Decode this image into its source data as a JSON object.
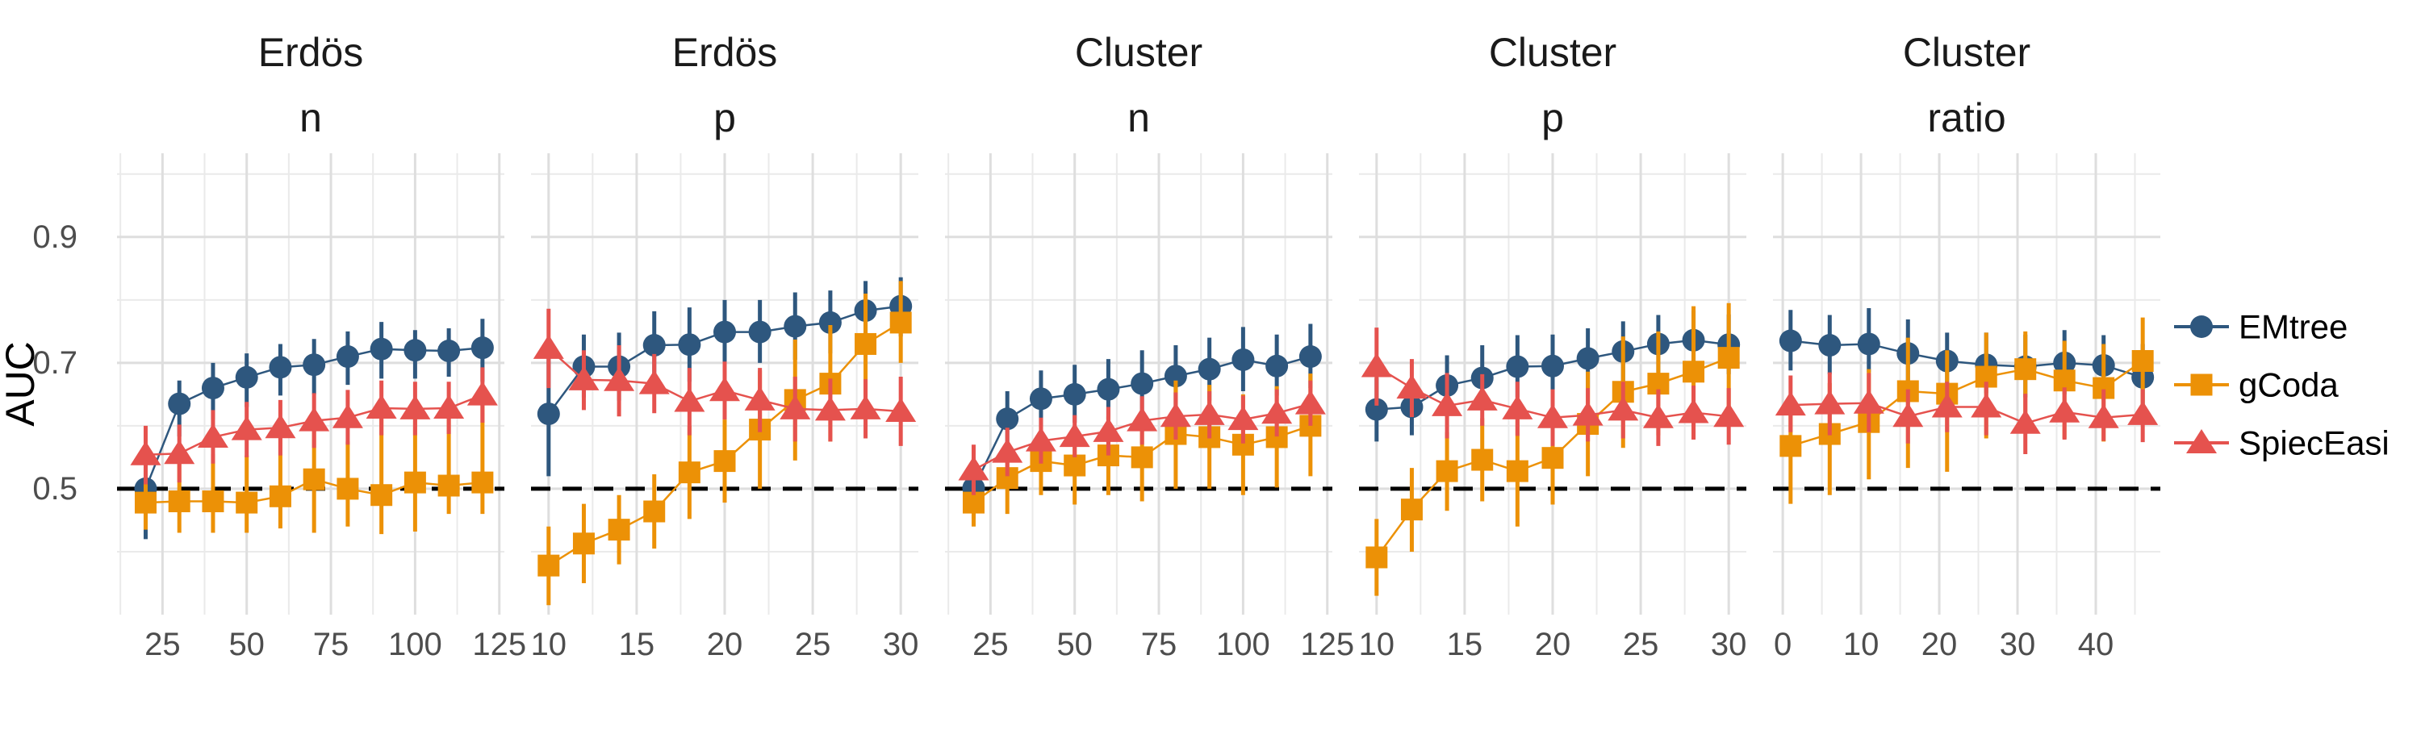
{
  "chart_data": {
    "type": "line",
    "title": "",
    "ylabel": "AUC",
    "background": "#ffffff",
    "grid": true,
    "legend_position": "right",
    "y_axis": {
      "domain": [
        0.3,
        1.033
      ],
      "ticks": [
        0.5,
        0.7,
        0.9
      ],
      "tick_labels": [
        "0.5",
        "0.7",
        "0.9"
      ],
      "minor": [
        0.4,
        0.6,
        0.8,
        1.0
      ],
      "reference_line": 0.5
    },
    "colors": {
      "emtree": "#2E577E",
      "gcoda": "#EC9106",
      "spieceasi": "#E5524E",
      "grid_major": "#DEDEDE",
      "grid_minor": "#EAEAEA",
      "axis_text": "#4D4D4D",
      "strip_text": "#1A1A1A",
      "reference": "#000000"
    },
    "series_meta": [
      {
        "name": "EMtree",
        "key": "emtree",
        "marker": "circle"
      },
      {
        "name": "gCoda",
        "key": "gcoda",
        "marker": "square"
      },
      {
        "name": "SpiecEasi",
        "key": "spieceasi",
        "marker": "triangle"
      }
    ],
    "legend": {
      "items": [
        "EMtree",
        "gCoda",
        "SpiecEasi"
      ]
    },
    "panels": [
      {
        "id": "erdos-n",
        "title_top": "Erdös",
        "title_bottom": "n",
        "x_domain": [
          11.5,
          126.5
        ],
        "x_major": [
          25,
          50,
          75,
          100,
          125
        ],
        "x_minor": [
          12.5,
          37.5,
          62.5,
          87.5,
          112.5
        ],
        "x": [
          20,
          30,
          40,
          50,
          60,
          70,
          80,
          90,
          100,
          110,
          120
        ],
        "series": [
          {
            "y": [
              0.5,
              0.635,
              0.66,
              0.677,
              0.693,
              0.697,
              0.71,
              0.722,
              0.72,
              0.719,
              0.724
            ],
            "lo": [
              0.42,
              0.583,
              0.61,
              0.63,
              0.648,
              0.65,
              0.665,
              0.675,
              0.675,
              0.678,
              0.67
            ],
            "hi": [
              0.553,
              0.672,
              0.7,
              0.715,
              0.73,
              0.738,
              0.75,
              0.765,
              0.752,
              0.755,
              0.77
            ]
          },
          {
            "y": [
              0.478,
              0.48,
              0.48,
              0.478,
              0.488,
              0.515,
              0.5,
              0.49,
              0.51,
              0.505,
              0.51
            ],
            "lo": [
              0.435,
              0.43,
              0.43,
              0.43,
              0.437,
              0.43,
              0.44,
              0.428,
              0.432,
              0.46,
              0.46
            ],
            "hi": [
              0.52,
              0.55,
              0.555,
              0.553,
              0.58,
              0.6,
              0.575,
              0.615,
              0.63,
              0.615,
              0.64
            ]
          },
          {
            "y": [
              0.554,
              0.556,
              0.582,
              0.594,
              0.597,
              0.608,
              0.613,
              0.628,
              0.627,
              0.628,
              0.649
            ],
            "lo": [
              0.507,
              0.51,
              0.54,
              0.55,
              0.553,
              0.565,
              0.57,
              0.585,
              0.585,
              0.587,
              0.605
            ],
            "hi": [
              0.6,
              0.602,
              0.625,
              0.638,
              0.641,
              0.652,
              0.657,
              0.672,
              0.67,
              0.67,
              0.693
            ]
          }
        ]
      },
      {
        "id": "erdos-p",
        "title_top": "Erdös",
        "title_bottom": "p",
        "x_domain": [
          9,
          31
        ],
        "x_major": [
          10,
          15,
          20,
          25,
          30
        ],
        "x_minor": [
          12.5,
          17.5,
          22.5,
          27.5
        ],
        "x": [
          10,
          12,
          14,
          16,
          18,
          20,
          22,
          24,
          26,
          28,
          30
        ],
        "series": [
          {
            "y": [
              0.619,
              0.694,
              0.694,
              0.728,
              0.729,
              0.749,
              0.749,
              0.758,
              0.764,
              0.783,
              0.79
            ],
            "lo": [
              0.52,
              0.645,
              0.64,
              0.675,
              0.67,
              0.697,
              0.7,
              0.705,
              0.715,
              0.735,
              0.742
            ],
            "hi": [
              0.718,
              0.745,
              0.748,
              0.782,
              0.788,
              0.8,
              0.8,
              0.812,
              0.815,
              0.83,
              0.836
            ]
          },
          {
            "y": [
              0.378,
              0.413,
              0.435,
              0.464,
              0.526,
              0.544,
              0.594,
              0.641,
              0.667,
              0.73,
              0.764
            ],
            "lo": [
              0.315,
              0.35,
              0.38,
              0.405,
              0.452,
              0.478,
              0.5,
              0.545,
              0.575,
              0.64,
              0.7
            ],
            "hi": [
              0.44,
              0.476,
              0.49,
              0.523,
              0.6,
              0.61,
              0.688,
              0.737,
              0.76,
              0.81,
              0.83
            ]
          },
          {
            "y": [
              0.723,
              0.673,
              0.672,
              0.667,
              0.639,
              0.656,
              0.641,
              0.627,
              0.625,
              0.627,
              0.623
            ],
            "lo": [
              0.66,
              0.625,
              0.615,
              0.62,
              0.585,
              0.61,
              0.59,
              0.575,
              0.575,
              0.58,
              0.568
            ],
            "hi": [
              0.786,
              0.72,
              0.728,
              0.714,
              0.692,
              0.702,
              0.692,
              0.678,
              0.675,
              0.674,
              0.678
            ]
          }
        ]
      },
      {
        "id": "cluster-n",
        "title_top": "Cluster",
        "title_bottom": "n",
        "x_domain": [
          11.5,
          126.5
        ],
        "x_major": [
          25,
          50,
          75,
          100,
          125
        ],
        "x_minor": [
          12.5,
          37.5,
          62.5,
          87.5,
          112.5
        ],
        "x": [
          20,
          30,
          40,
          50,
          60,
          70,
          80,
          90,
          100,
          110,
          120
        ],
        "series": [
          {
            "y": [
              0.501,
              0.611,
              0.643,
              0.65,
              0.658,
              0.667,
              0.679,
              0.69,
              0.705,
              0.695,
              0.71
            ],
            "lo": [
              0.452,
              0.565,
              0.6,
              0.605,
              0.61,
              0.616,
              0.63,
              0.64,
              0.655,
              0.648,
              0.66
            ],
            "hi": [
              0.55,
              0.655,
              0.688,
              0.697,
              0.706,
              0.72,
              0.728,
              0.74,
              0.757,
              0.745,
              0.762
            ]
          },
          {
            "y": [
              0.478,
              0.517,
              0.544,
              0.537,
              0.553,
              0.55,
              0.587,
              0.582,
              0.57,
              0.582,
              0.6
            ],
            "lo": [
              0.44,
              0.46,
              0.49,
              0.475,
              0.49,
              0.48,
              0.5,
              0.5,
              0.49,
              0.502,
              0.52
            ],
            "hi": [
              0.515,
              0.57,
              0.6,
              0.6,
              0.615,
              0.62,
              0.672,
              0.665,
              0.65,
              0.663,
              0.683
            ]
          },
          {
            "y": [
              0.53,
              0.558,
              0.576,
              0.583,
              0.591,
              0.608,
              0.615,
              0.618,
              0.61,
              0.62,
              0.635
            ],
            "lo": [
              0.49,
              0.52,
              0.54,
              0.55,
              0.553,
              0.57,
              0.578,
              0.58,
              0.572,
              0.583,
              0.6
            ],
            "hi": [
              0.57,
              0.597,
              0.613,
              0.617,
              0.63,
              0.647,
              0.653,
              0.655,
              0.648,
              0.658,
              0.672
            ]
          }
        ]
      },
      {
        "id": "cluster-p",
        "title_top": "Cluster",
        "title_bottom": "p",
        "x_domain": [
          9,
          31
        ],
        "x_major": [
          10,
          15,
          20,
          25,
          30
        ],
        "x_minor": [
          12.5,
          17.5,
          22.5,
          27.5
        ],
        "x": [
          10,
          12,
          14,
          16,
          18,
          20,
          22,
          24,
          26,
          28,
          30
        ],
        "series": [
          {
            "y": [
              0.626,
              0.63,
              0.664,
              0.676,
              0.694,
              0.695,
              0.707,
              0.718,
              0.73,
              0.736,
              0.729
            ],
            "lo": [
              0.575,
              0.585,
              0.615,
              0.625,
              0.645,
              0.645,
              0.66,
              0.67,
              0.685,
              0.69,
              0.682
            ],
            "hi": [
              0.676,
              0.677,
              0.712,
              0.728,
              0.744,
              0.745,
              0.755,
              0.766,
              0.776,
              0.783,
              0.777
            ]
          },
          {
            "y": [
              0.391,
              0.467,
              0.528,
              0.546,
              0.528,
              0.549,
              0.603,
              0.654,
              0.667,
              0.686,
              0.708
            ],
            "lo": [
              0.33,
              0.4,
              0.465,
              0.48,
              0.44,
              0.475,
              0.52,
              0.565,
              0.585,
              0.58,
              0.62
            ],
            "hi": [
              0.452,
              0.533,
              0.59,
              0.612,
              0.615,
              0.623,
              0.686,
              0.742,
              0.75,
              0.79,
              0.795
            ]
          },
          {
            "y": [
              0.694,
              0.66,
              0.632,
              0.641,
              0.627,
              0.613,
              0.617,
              0.625,
              0.613,
              0.621,
              0.615
            ],
            "lo": [
              0.632,
              0.614,
              0.58,
              0.6,
              0.584,
              0.568,
              0.575,
              0.58,
              0.568,
              0.578,
              0.57
            ],
            "hi": [
              0.756,
              0.706,
              0.684,
              0.682,
              0.67,
              0.658,
              0.66,
              0.67,
              0.658,
              0.664,
              0.66
            ]
          }
        ]
      },
      {
        "id": "cluster-ratio",
        "title_top": "Cluster",
        "title_bottom": "ratio",
        "x_domain": [
          -1.25,
          48.25
        ],
        "x_major": [
          0,
          10,
          20,
          30,
          40
        ],
        "x_minor": [
          5,
          15,
          25,
          35,
          45
        ],
        "x": [
          1,
          6,
          11,
          16,
          21,
          26,
          31,
          36,
          41,
          46
        ],
        "series": [
          {
            "y": [
              0.735,
              0.728,
              0.73,
              0.715,
              0.703,
              0.697,
              0.694,
              0.7,
              0.696,
              0.677
            ],
            "lo": [
              0.688,
              0.682,
              0.685,
              0.665,
              0.652,
              0.652,
              0.645,
              0.65,
              0.646,
              0.625
            ],
            "hi": [
              0.784,
              0.776,
              0.787,
              0.769,
              0.748,
              0.748,
              0.745,
              0.752,
              0.744,
              0.73
            ]
          },
          {
            "y": [
              0.568,
              0.587,
              0.606,
              0.655,
              0.651,
              0.678,
              0.69,
              0.672,
              0.66,
              0.703
            ],
            "lo": [
              0.476,
              0.49,
              0.515,
              0.533,
              0.527,
              0.58,
              0.6,
              0.58,
              0.575,
              0.61
            ],
            "hi": [
              0.648,
              0.668,
              0.69,
              0.74,
              0.72,
              0.748,
              0.75,
              0.735,
              0.73,
              0.772
            ]
          },
          {
            "y": [
              0.633,
              0.635,
              0.636,
              0.615,
              0.63,
              0.63,
              0.604,
              0.622,
              0.613,
              0.618
            ],
            "lo": [
              0.59,
              0.585,
              0.59,
              0.572,
              0.59,
              0.585,
              0.555,
              0.578,
              0.576,
              0.574
            ],
            "hi": [
              0.68,
              0.685,
              0.684,
              0.658,
              0.67,
              0.67,
              0.651,
              0.661,
              0.658,
              0.658
            ]
          }
        ]
      }
    ]
  }
}
